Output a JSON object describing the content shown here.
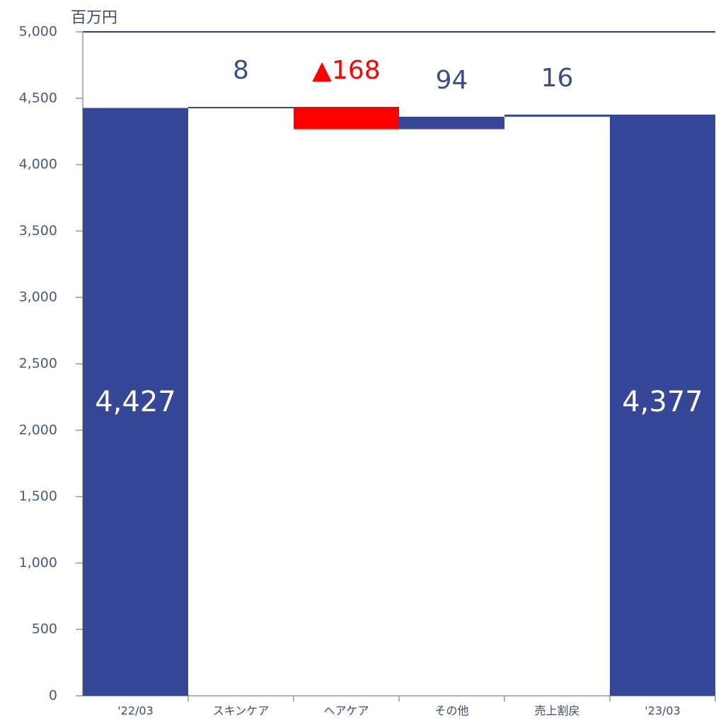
{
  "chart_data": {
    "type": "waterfall",
    "unit_label": "百万円",
    "categories": [
      "'22/03",
      "スキンケア",
      "ヘアケア",
      "その他",
      "売上割戻",
      "'23/03"
    ],
    "values": [
      4427,
      8,
      -168,
      94,
      16,
      4377
    ],
    "value_labels": [
      "4,427",
      "8",
      "▲168",
      "94",
      "16",
      "4,377"
    ],
    "totals": [
      true,
      false,
      false,
      false,
      false,
      true
    ],
    "total_color": "#354796",
    "increase_color": "#354796",
    "decrease_color": "#ff0000",
    "ylim": [
      0,
      5000
    ],
    "yticks": [
      0,
      500,
      {
        "value": 1000,
        "label": "1,000"
      },
      {
        "value": 1500,
        "label": "1,500"
      },
      {
        "value": 2000,
        "label": "2,000"
      },
      {
        "value": 2500,
        "label": "2,500"
      },
      {
        "value": 3000,
        "label": "3,000"
      },
      {
        "value": 3500,
        "label": "3,500"
      },
      {
        "value": 4000,
        "label": "4,000"
      },
      {
        "value": 4500,
        "label": "4,500"
      },
      {
        "value": 5000,
        "label": "5,000"
      }
    ]
  }
}
